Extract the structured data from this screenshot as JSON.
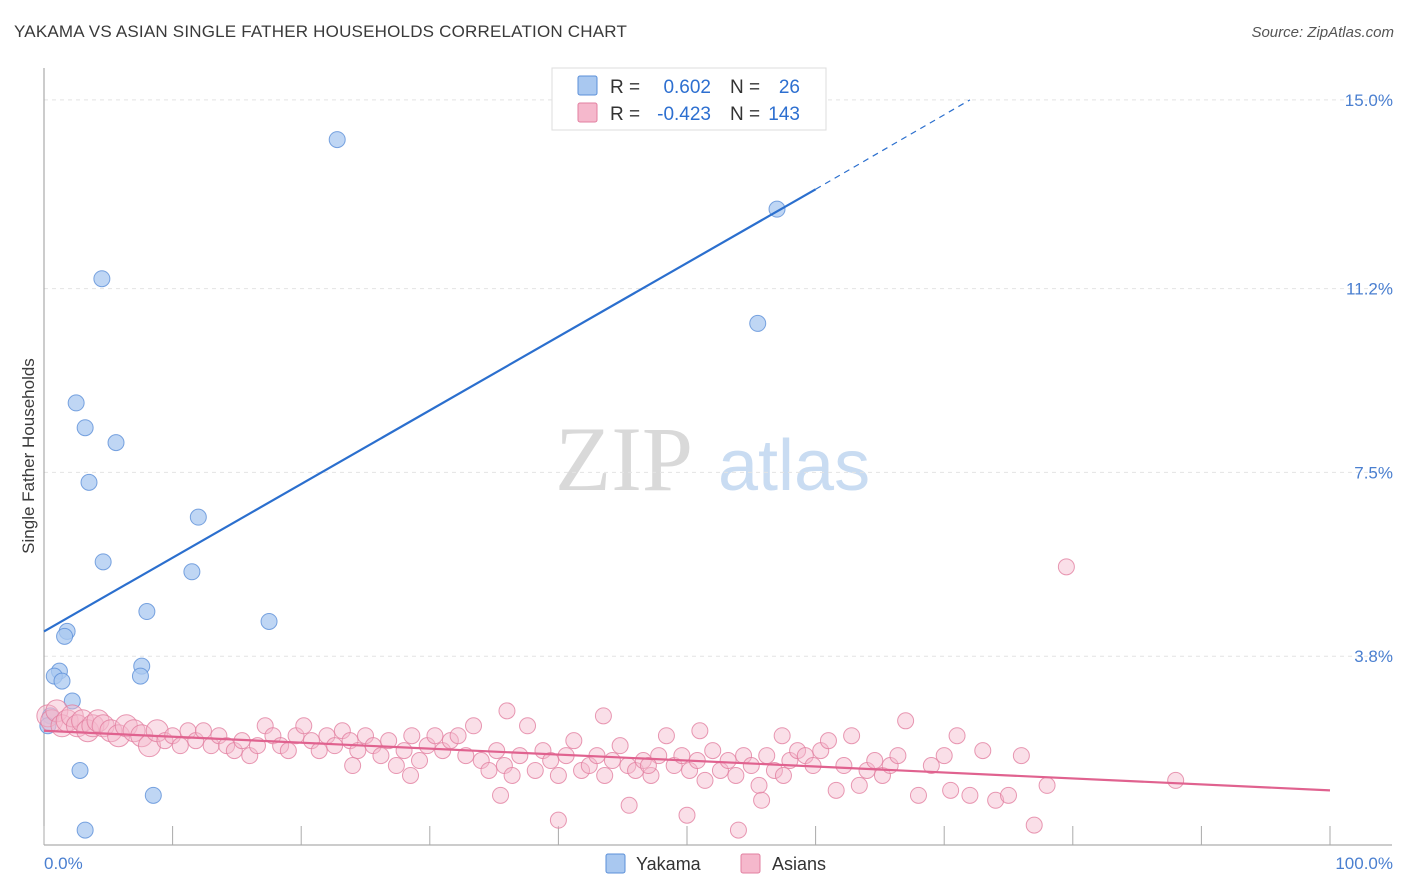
{
  "title": "YAKAMA VS ASIAN SINGLE FATHER HOUSEHOLDS CORRELATION CHART",
  "source": "Source: ZipAtlas.com",
  "watermark": {
    "zip": "ZIP",
    "atlas": "atlas"
  },
  "legend": {
    "r_label": "R =",
    "n_label": "N =",
    "rows": [
      {
        "name": "Yakama",
        "r": "0.602",
        "n": "26",
        "color": "#a9c8f0"
      },
      {
        "name": "Asians",
        "r": "-0.423",
        "n": "143",
        "color": "#f5b8cc"
      }
    ]
  },
  "chart_data": {
    "type": "scatter",
    "ylabel": "Single Father Households",
    "xlabel": "",
    "x_tick_labels": [
      "0.0%",
      "100.0%"
    ],
    "y_tick_labels": [
      "15.0%",
      "11.2%",
      "7.5%",
      "3.8%"
    ],
    "y_ticks": [
      15.0,
      11.2,
      7.5,
      3.8
    ],
    "xlim": [
      0,
      100
    ],
    "ylim": [
      0,
      15.4
    ],
    "grid": true,
    "series": [
      {
        "name": "Yakama",
        "color": "#a9c8f0",
        "stroke": "#5b8fd8",
        "line_color": "#2b6fce",
        "trend": {
          "x0": 0,
          "y0": 4.3,
          "x1": 60,
          "y1": 13.2,
          "dash_x1": 72,
          "dash_y1": 15.0
        },
        "points": [
          [
            22.8,
            14.2
          ],
          [
            57.0,
            12.8
          ],
          [
            4.5,
            11.4
          ],
          [
            55.5,
            10.5
          ],
          [
            2.5,
            8.9
          ],
          [
            3.2,
            8.4
          ],
          [
            5.6,
            8.1
          ],
          [
            3.5,
            7.3
          ],
          [
            12.0,
            6.6
          ],
          [
            4.6,
            5.7
          ],
          [
            11.5,
            5.5
          ],
          [
            8.0,
            4.7
          ],
          [
            17.5,
            4.5
          ],
          [
            1.8,
            4.3
          ],
          [
            1.6,
            4.2
          ],
          [
            7.6,
            3.6
          ],
          [
            1.2,
            3.5
          ],
          [
            0.8,
            3.4
          ],
          [
            1.4,
            3.3
          ],
          [
            7.5,
            3.4
          ],
          [
            2.2,
            2.9
          ],
          [
            0.5,
            2.6
          ],
          [
            0.3,
            2.4
          ],
          [
            2.8,
            1.5
          ],
          [
            8.5,
            1.0
          ],
          [
            3.2,
            0.3
          ]
        ]
      },
      {
        "name": "Asians",
        "color": "#f5b8cc",
        "stroke": "#e27fa0",
        "line_color": "#e0628f",
        "trend": {
          "x0": 0,
          "y0": 2.3,
          "x1": 100,
          "y1": 1.1
        },
        "points": [
          [
            0.3,
            2.6
          ],
          [
            0.6,
            2.5
          ],
          [
            1.0,
            2.7
          ],
          [
            1.4,
            2.4
          ],
          [
            1.8,
            2.5
          ],
          [
            2.2,
            2.6
          ],
          [
            2.6,
            2.4
          ],
          [
            3.0,
            2.5
          ],
          [
            3.4,
            2.3
          ],
          [
            3.8,
            2.4
          ],
          [
            4.2,
            2.5
          ],
          [
            4.6,
            2.4
          ],
          [
            5.2,
            2.3
          ],
          [
            5.8,
            2.2
          ],
          [
            6.4,
            2.4
          ],
          [
            7.0,
            2.3
          ],
          [
            7.6,
            2.2
          ],
          [
            8.2,
            2.0
          ],
          [
            8.8,
            2.3
          ],
          [
            9.4,
            2.1
          ],
          [
            10.0,
            2.2
          ],
          [
            10.6,
            2.0
          ],
          [
            11.2,
            2.3
          ],
          [
            11.8,
            2.1
          ],
          [
            12.4,
            2.3
          ],
          [
            13.0,
            2.0
          ],
          [
            13.6,
            2.2
          ],
          [
            14.2,
            2.0
          ],
          [
            14.8,
            1.9
          ],
          [
            15.4,
            2.1
          ],
          [
            16.0,
            1.8
          ],
          [
            16.6,
            2.0
          ],
          [
            17.2,
            2.4
          ],
          [
            17.8,
            2.2
          ],
          [
            18.4,
            2.0
          ],
          [
            19.0,
            1.9
          ],
          [
            19.6,
            2.2
          ],
          [
            20.2,
            2.4
          ],
          [
            20.8,
            2.1
          ],
          [
            21.4,
            1.9
          ],
          [
            22.0,
            2.2
          ],
          [
            22.6,
            2.0
          ],
          [
            23.2,
            2.3
          ],
          [
            23.8,
            2.1
          ],
          [
            24.4,
            1.9
          ],
          [
            25.0,
            2.2
          ],
          [
            25.6,
            2.0
          ],
          [
            26.2,
            1.8
          ],
          [
            26.8,
            2.1
          ],
          [
            27.4,
            1.6
          ],
          [
            28.0,
            1.9
          ],
          [
            28.6,
            2.2
          ],
          [
            29.2,
            1.7
          ],
          [
            29.8,
            2.0
          ],
          [
            30.4,
            2.2
          ],
          [
            31.0,
            1.9
          ],
          [
            31.6,
            2.1
          ],
          [
            32.2,
            2.2
          ],
          [
            32.8,
            1.8
          ],
          [
            33.4,
            2.4
          ],
          [
            34.0,
            1.7
          ],
          [
            34.6,
            1.5
          ],
          [
            35.2,
            1.9
          ],
          [
            35.8,
            1.6
          ],
          [
            36.4,
            1.4
          ],
          [
            37.0,
            1.8
          ],
          [
            37.6,
            2.4
          ],
          [
            38.2,
            1.5
          ],
          [
            38.8,
            1.9
          ],
          [
            39.4,
            1.7
          ],
          [
            40.0,
            1.4
          ],
          [
            40.6,
            1.8
          ],
          [
            41.2,
            2.1
          ],
          [
            41.8,
            1.5
          ],
          [
            42.4,
            1.6
          ],
          [
            43.0,
            1.8
          ],
          [
            43.6,
            1.4
          ],
          [
            44.2,
            1.7
          ],
          [
            44.8,
            2.0
          ],
          [
            45.4,
            1.6
          ],
          [
            46.0,
            1.5
          ],
          [
            46.6,
            1.7
          ],
          [
            47.2,
            1.4
          ],
          [
            47.8,
            1.8
          ],
          [
            48.4,
            2.2
          ],
          [
            49.0,
            1.6
          ],
          [
            49.6,
            1.8
          ],
          [
            50.2,
            1.5
          ],
          [
            50.8,
            1.7
          ],
          [
            51.4,
            1.3
          ],
          [
            52.0,
            1.9
          ],
          [
            52.6,
            1.5
          ],
          [
            53.2,
            1.7
          ],
          [
            53.8,
            1.4
          ],
          [
            54.4,
            1.8
          ],
          [
            55.0,
            1.6
          ],
          [
            55.6,
            1.2
          ],
          [
            56.2,
            1.8
          ],
          [
            56.8,
            1.5
          ],
          [
            57.4,
            2.2
          ],
          [
            58.0,
            1.7
          ],
          [
            58.6,
            1.9
          ],
          [
            59.2,
            1.8
          ],
          [
            59.8,
            1.6
          ],
          [
            60.4,
            1.9
          ],
          [
            61.0,
            2.1
          ],
          [
            61.6,
            1.1
          ],
          [
            62.2,
            1.6
          ],
          [
            62.8,
            2.2
          ],
          [
            63.4,
            1.2
          ],
          [
            64.0,
            1.5
          ],
          [
            64.6,
            1.7
          ],
          [
            65.2,
            1.4
          ],
          [
            65.8,
            1.6
          ],
          [
            66.4,
            1.8
          ],
          [
            67.0,
            2.5
          ],
          [
            68.0,
            1.0
          ],
          [
            69.0,
            1.6
          ],
          [
            70.0,
            1.8
          ],
          [
            71.0,
            2.2
          ],
          [
            72.0,
            1.0
          ],
          [
            73.0,
            1.9
          ],
          [
            74.0,
            0.9
          ],
          [
            75.0,
            1.0
          ],
          [
            76.0,
            1.8
          ],
          [
            78.0,
            1.2
          ],
          [
            79.5,
            5.6
          ],
          [
            54.0,
            0.3
          ],
          [
            50.0,
            0.6
          ],
          [
            45.5,
            0.8
          ],
          [
            40.0,
            0.5
          ],
          [
            35.5,
            1.0
          ],
          [
            88.0,
            1.3
          ],
          [
            77.0,
            0.4
          ],
          [
            70.5,
            1.1
          ],
          [
            55.8,
            0.9
          ],
          [
            57.5,
            1.4
          ],
          [
            51.0,
            2.3
          ],
          [
            47.0,
            1.6
          ],
          [
            43.5,
            2.6
          ],
          [
            36.0,
            2.7
          ],
          [
            28.5,
            1.4
          ],
          [
            24.0,
            1.6
          ]
        ]
      }
    ]
  }
}
